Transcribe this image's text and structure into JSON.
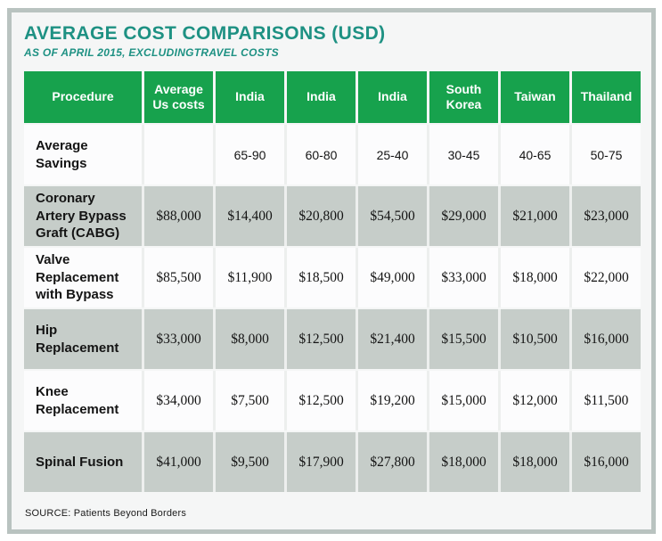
{
  "chart_data": {
    "type": "table",
    "title": "AVERAGE COST COMPARISONS (USD)",
    "subtitle": "AS OF APRIL 2015, EXCLUDINGTRAVEL COSTS",
    "columns": [
      "Procedure",
      "Average Us costs",
      "India",
      "India",
      "India",
      "South Korea",
      "Taiwan",
      "Thailand"
    ],
    "rows": [
      {
        "procedure": "Average Savings",
        "values": [
          "",
          "65-90",
          "60-80",
          "25-40",
          "30-45",
          "40-65",
          "50-75"
        ]
      },
      {
        "procedure": "Coronary Artery Bypass Graft (CABG)",
        "values": [
          "$88,000",
          "$14,400",
          "$20,800",
          "$54,500",
          "$29,000",
          "$21,000",
          "$23,000"
        ]
      },
      {
        "procedure": "Valve Replacement with Bypass",
        "values": [
          "$85,500",
          "$11,900",
          "$18,500",
          "$49,000",
          "$33,000",
          "$18,000",
          "$22,000"
        ]
      },
      {
        "procedure": "Hip Replacement",
        "values": [
          "$33,000",
          "$8,000",
          "$12,500",
          "$21,400",
          "$15,500",
          "$10,500",
          "$16,000"
        ]
      },
      {
        "procedure": "Knee Replacement",
        "values": [
          "$34,000",
          "$7,500",
          "$12,500",
          "$19,200",
          "$15,000",
          "$12,000",
          "$11,500"
        ]
      },
      {
        "procedure": "Spinal Fusion",
        "values": [
          "$41,000",
          "$9,500",
          "$17,900",
          "$27,800",
          "$18,000",
          "$18,000",
          "$16,000"
        ]
      }
    ],
    "source": "SOURCE: Patients Beyond Borders",
    "colors": {
      "header_green": "#17a24d",
      "title_teal": "#1e9183",
      "row_gray": "#c6cdc9",
      "frame_border": "#b9c3c0",
      "panel_background": "#f5f6f6"
    },
    "legend_position": "none",
    "grid": false
  }
}
